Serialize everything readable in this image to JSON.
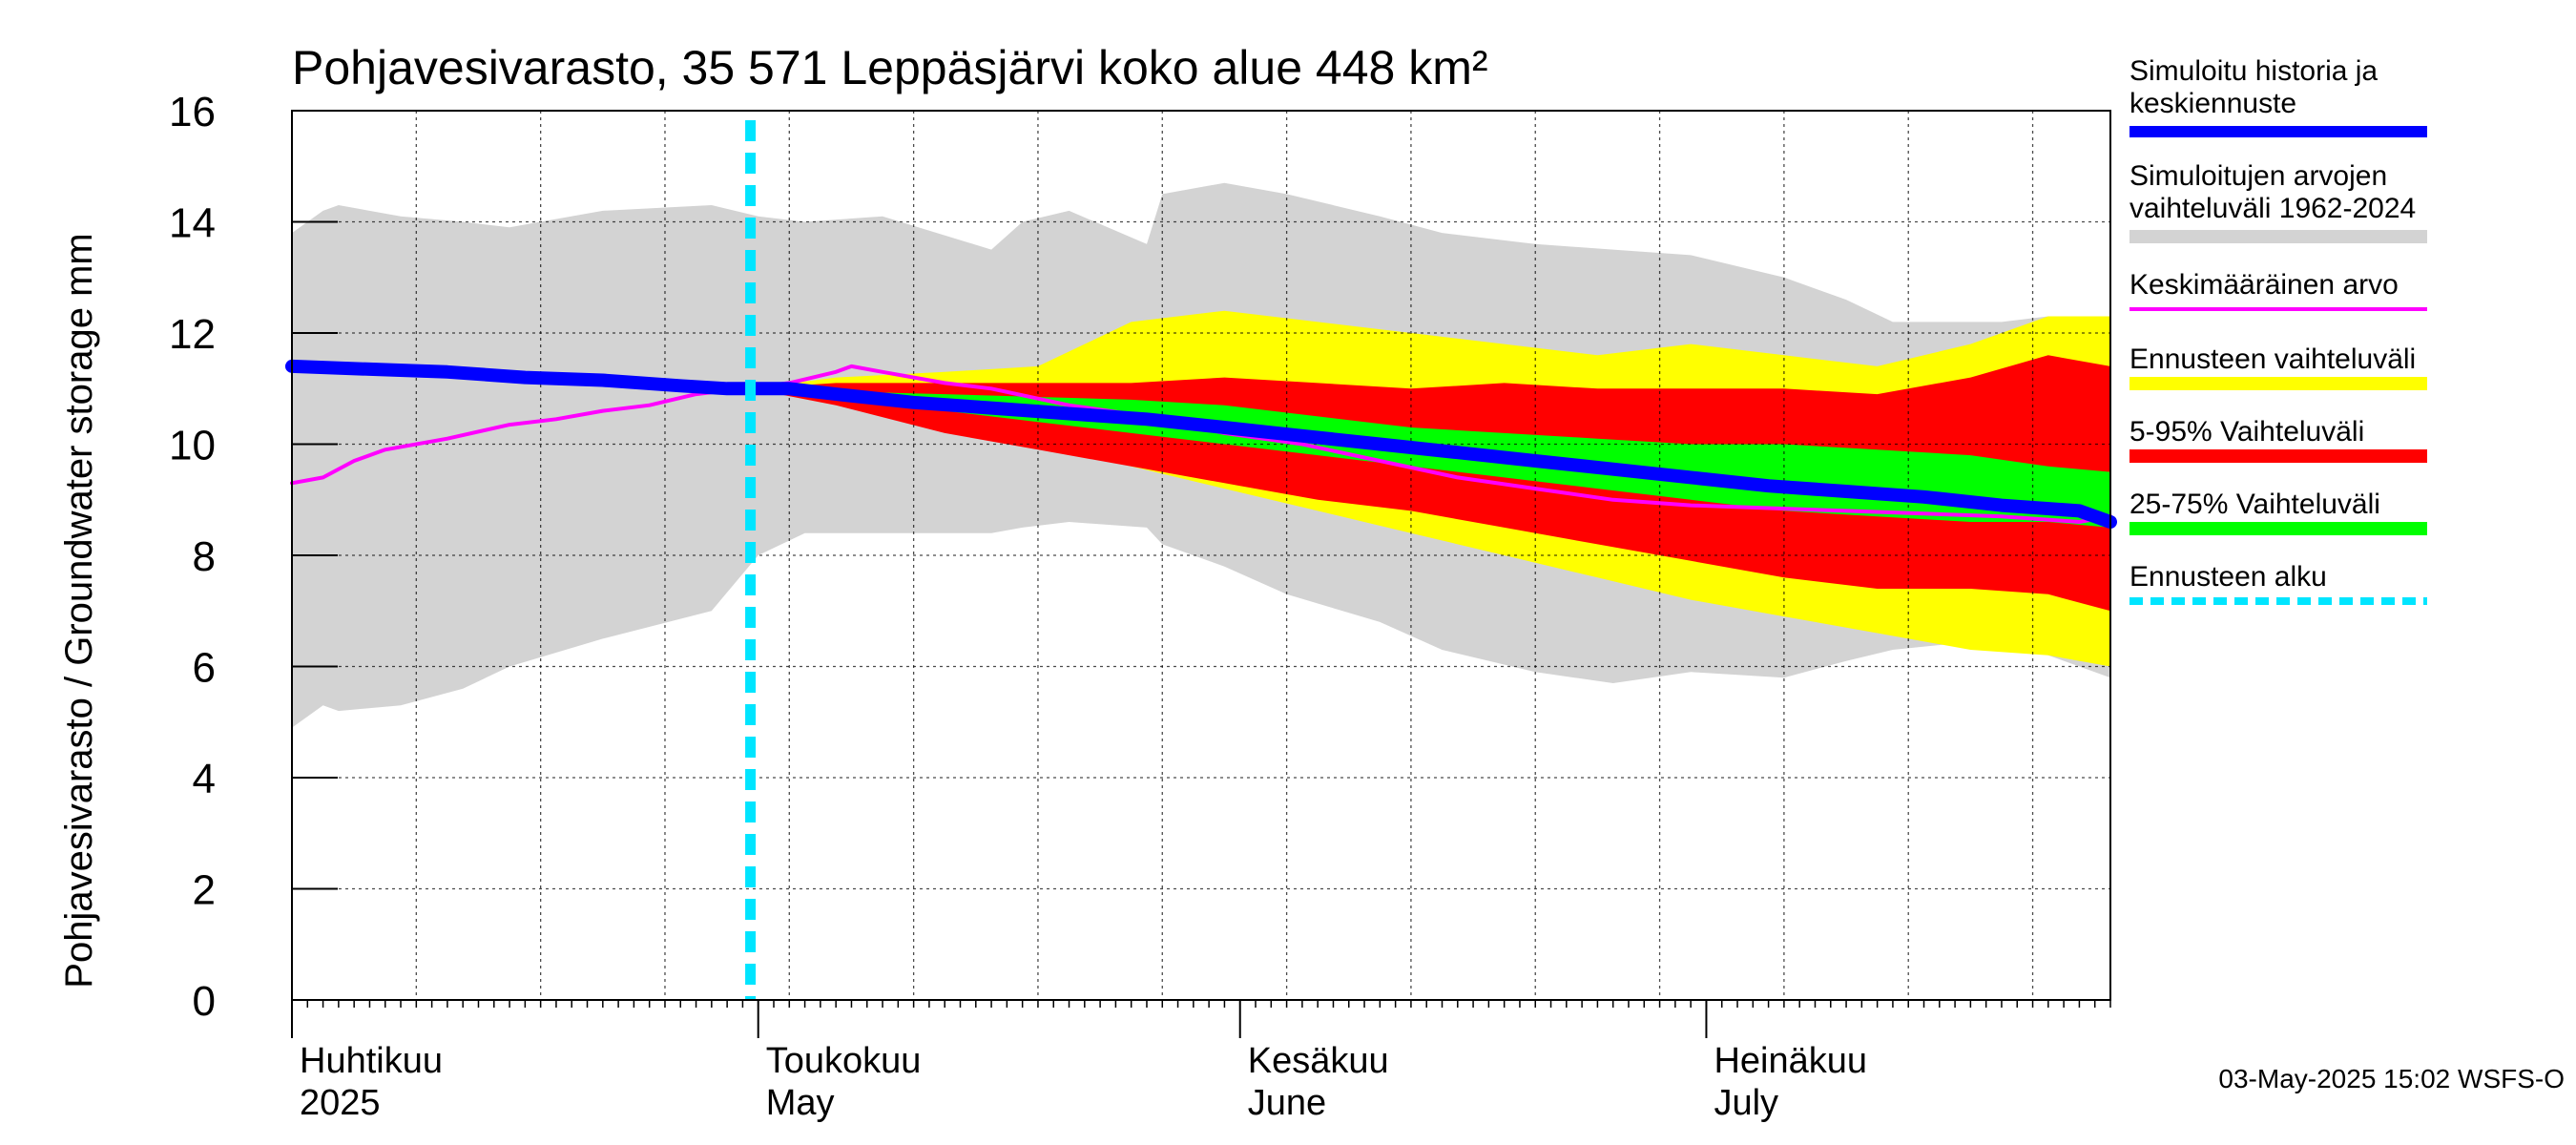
{
  "chart_data": {
    "type": "area",
    "title": "Pohjavesivarasto, 35 571 Leppäsjärvi koko alue 448 km²",
    "ylabel": "Pohjavesivarasto / Groundwater storage   mm",
    "ylim": [
      0,
      16
    ],
    "yticks": [
      "0",
      "2",
      "4",
      "6",
      "8",
      "10",
      "12",
      "14",
      "16"
    ],
    "x_range_days": [
      0,
      117
    ],
    "month_labels": [
      {
        "day": 0,
        "fi": "Huhtikuu",
        "en": "2025"
      },
      {
        "day": 30,
        "fi": "Toukokuu",
        "en": "May"
      },
      {
        "day": 61,
        "fi": "Kesäkuu",
        "en": "June"
      },
      {
        "day": 91,
        "fi": "Heinäkuu",
        "en": "July"
      }
    ],
    "forecast_start_day": 29.5,
    "series": [
      {
        "name": "Simuloitujen arvojen vaihteluväli 1962-2024",
        "color": "#d3d3d3",
        "x": [
          0,
          2,
          3,
          7,
          11,
          14,
          20,
          27,
          30,
          33,
          38,
          45,
          47,
          50,
          55,
          56,
          60,
          64,
          70,
          74,
          80,
          85,
          90,
          96,
          100,
          103,
          110,
          113,
          117
        ],
        "upper": [
          13.8,
          14.2,
          14.3,
          14.1,
          14.0,
          13.9,
          14.2,
          14.3,
          14.1,
          14.0,
          14.1,
          13.5,
          14.0,
          14.2,
          13.6,
          14.5,
          14.7,
          14.5,
          14.1,
          13.8,
          13.6,
          13.5,
          13.4,
          13.0,
          12.6,
          12.2,
          12.2,
          12.3,
          12.2
        ],
        "lower": [
          4.9,
          5.3,
          5.2,
          5.3,
          5.6,
          6.0,
          6.5,
          7.0,
          8.0,
          8.4,
          8.4,
          8.4,
          8.5,
          8.6,
          8.5,
          8.2,
          7.8,
          7.3,
          6.8,
          6.3,
          5.9,
          5.7,
          5.9,
          5.8,
          6.1,
          6.3,
          6.5,
          6.2,
          5.8
        ]
      },
      {
        "name": "Ennusteen vaihteluväli",
        "color": "#ffff00",
        "x": [
          29.5,
          35,
          42,
          48,
          54,
          60,
          66,
          72,
          78,
          84,
          90,
          96,
          102,
          108,
          113,
          117
        ],
        "upper": [
          11.0,
          11.2,
          11.3,
          11.4,
          12.2,
          12.4,
          12.2,
          12.0,
          11.8,
          11.6,
          11.8,
          11.6,
          11.4,
          11.8,
          12.3,
          12.3
        ],
        "lower": [
          11.0,
          10.8,
          10.4,
          10.0,
          9.6,
          9.2,
          8.8,
          8.4,
          8.0,
          7.6,
          7.2,
          6.9,
          6.6,
          6.3,
          6.2,
          6.0
        ]
      },
      {
        "name": "5-95% Vaihteluväli",
        "color": "#ff0000",
        "x": [
          29.5,
          35,
          42,
          48,
          54,
          60,
          66,
          72,
          78,
          84,
          90,
          96,
          102,
          108,
          113,
          117
        ],
        "upper": [
          11.0,
          11.1,
          11.1,
          11.1,
          11.1,
          11.2,
          11.1,
          11.0,
          11.1,
          11.0,
          11.0,
          11.0,
          10.9,
          11.2,
          11.6,
          11.4
        ],
        "lower": [
          11.0,
          10.7,
          10.2,
          9.9,
          9.6,
          9.3,
          9.0,
          8.8,
          8.5,
          8.2,
          7.9,
          7.6,
          7.4,
          7.4,
          7.3,
          7.0
        ]
      },
      {
        "name": "25-75% Vaihteluväli",
        "color": "#00ff00",
        "x": [
          29.5,
          35,
          42,
          48,
          54,
          60,
          66,
          72,
          78,
          84,
          90,
          96,
          102,
          108,
          113,
          117
        ],
        "upper": [
          11.0,
          10.95,
          10.9,
          10.85,
          10.8,
          10.7,
          10.5,
          10.3,
          10.2,
          10.1,
          10.0,
          10.0,
          9.9,
          9.8,
          9.6,
          9.5
        ],
        "lower": [
          11.0,
          10.85,
          10.6,
          10.4,
          10.2,
          10.0,
          9.8,
          9.6,
          9.4,
          9.2,
          9.0,
          8.8,
          8.7,
          8.6,
          8.6,
          8.5
        ]
      },
      {
        "name": "Keskimääräinen arvo",
        "color": "#ff00ff",
        "x": [
          0,
          2,
          4,
          6,
          10,
          14,
          17,
          20,
          23,
          26,
          29,
          32,
          35,
          36,
          38,
          42,
          45,
          50,
          55,
          60,
          65,
          70,
          75,
          80,
          85,
          90,
          95,
          100,
          105,
          110,
          115,
          117
        ],
        "values": [
          9.3,
          9.4,
          9.7,
          9.9,
          10.1,
          10.35,
          10.45,
          10.6,
          10.7,
          10.9,
          11.0,
          11.1,
          11.3,
          11.4,
          11.3,
          11.1,
          11.0,
          10.7,
          10.5,
          10.2,
          10.0,
          9.7,
          9.4,
          9.2,
          9.0,
          8.9,
          8.85,
          8.8,
          8.75,
          8.7,
          8.6,
          8.7
        ]
      },
      {
        "name": "Simuloitu historia ja keskiennuste",
        "color": "#0000ff",
        "x": [
          0,
          5,
          10,
          15,
          20,
          25,
          28,
          29.5,
          32,
          35,
          40,
          45,
          50,
          55,
          60,
          65,
          70,
          75,
          80,
          85,
          90,
          95,
          100,
          105,
          110,
          115,
          117
        ],
        "values": [
          11.4,
          11.35,
          11.3,
          11.2,
          11.15,
          11.05,
          11.0,
          11.0,
          11.0,
          10.9,
          10.75,
          10.65,
          10.55,
          10.45,
          10.3,
          10.15,
          10.0,
          9.85,
          9.7,
          9.55,
          9.4,
          9.25,
          9.15,
          9.05,
          8.9,
          8.8,
          8.6
        ]
      }
    ]
  },
  "legend": {
    "items": [
      {
        "key": "hist",
        "line1": "Simuloitu historia ja",
        "line2": "keskiennuste",
        "color": "#0000ff",
        "style": "thick"
      },
      {
        "key": "range",
        "line1": "Simuloitujen arvojen",
        "line2": "vaihteluväli 1962-2024",
        "color": "#d3d3d3",
        "style": "band"
      },
      {
        "key": "mean",
        "line1": "Keskimääräinen arvo",
        "line2": "",
        "color": "#ff00ff",
        "style": "thin"
      },
      {
        "key": "fcrange",
        "line1": "Ennusteen vaihteluväli",
        "line2": "",
        "color": "#ffff00",
        "style": "band"
      },
      {
        "key": "p5",
        "line1": "5-95% Vaihteluväli",
        "line2": "",
        "color": "#ff0000",
        "style": "band"
      },
      {
        "key": "p25",
        "line1": "25-75% Vaihteluväli",
        "line2": "",
        "color": "#00ff00",
        "style": "band"
      },
      {
        "key": "start",
        "line1": "Ennusteen alku",
        "line2": "",
        "color": "#00e5ff",
        "style": "dashed"
      }
    ]
  },
  "footer": "03-May-2025 15:02 WSFS-O"
}
